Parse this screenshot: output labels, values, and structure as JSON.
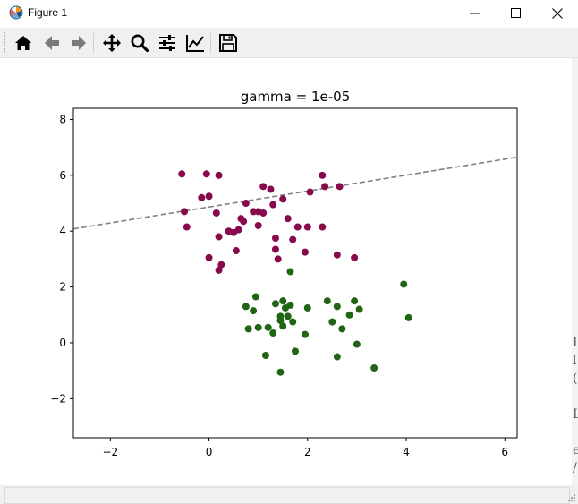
{
  "window": {
    "title": "Figure 1",
    "app_icon": "matplotlib-icon",
    "controls": [
      "minimize-icon",
      "maximize-icon",
      "close-icon"
    ]
  },
  "toolbar": {
    "buttons": [
      {
        "name": "home",
        "icon": "home-icon"
      },
      {
        "name": "back",
        "icon": "arrow-left-icon"
      },
      {
        "name": "forward",
        "icon": "arrow-right-icon"
      },
      {
        "name": "pan",
        "icon": "move-icon"
      },
      {
        "name": "zoom",
        "icon": "search-icon"
      },
      {
        "name": "configure-subplots",
        "icon": "sliders-icon"
      },
      {
        "name": "edit-axes",
        "icon": "chart-line-icon"
      },
      {
        "name": "save",
        "icon": "floppy-disk-icon"
      }
    ]
  },
  "colors": {
    "class_a": "#870a4c",
    "class_b": "#1f6514",
    "boundary": "#808080"
  },
  "chart_data": {
    "type": "scatter",
    "title": "gamma = 1e-05",
    "xlabel": "",
    "ylabel": "",
    "xlim": [
      -2.75,
      6.25
    ],
    "ylim": [
      -3.4,
      8.4
    ],
    "xticks": [
      -2,
      0,
      2,
      4,
      6
    ],
    "xtick_labels": [
      "−2",
      "0",
      "2",
      "4",
      "6"
    ],
    "yticks": [
      -2,
      0,
      2,
      4,
      6,
      8
    ],
    "ytick_labels": [
      "−2",
      "0",
      "2",
      "4",
      "6",
      "8"
    ],
    "grid": false,
    "legend": "none",
    "series": [
      {
        "color": "#870a4c",
        "points": [
          [
            -0.55,
            6.05
          ],
          [
            -0.05,
            6.05
          ],
          [
            0.2,
            6.0
          ],
          [
            -0.15,
            5.2
          ],
          [
            0.0,
            5.25
          ],
          [
            -0.5,
            4.7
          ],
          [
            0.15,
            4.65
          ],
          [
            -0.45,
            4.15
          ],
          [
            0.2,
            3.8
          ],
          [
            0.0,
            3.05
          ],
          [
            0.25,
            2.8
          ],
          [
            0.2,
            2.6
          ],
          [
            0.4,
            4.0
          ],
          [
            0.5,
            3.95
          ],
          [
            0.55,
            3.3
          ],
          [
            0.6,
            4.05
          ],
          [
            0.65,
            4.45
          ],
          [
            0.7,
            4.35
          ],
          [
            0.75,
            5.0
          ],
          [
            0.9,
            4.7
          ],
          [
            1.0,
            4.7
          ],
          [
            1.0,
            4.2
          ],
          [
            1.1,
            4.65
          ],
          [
            1.1,
            5.6
          ],
          [
            1.25,
            5.5
          ],
          [
            1.3,
            4.95
          ],
          [
            1.35,
            3.75
          ],
          [
            1.35,
            3.35
          ],
          [
            1.4,
            3.0
          ],
          [
            1.5,
            5.15
          ],
          [
            1.6,
            4.45
          ],
          [
            1.7,
            3.7
          ],
          [
            1.8,
            4.15
          ],
          [
            1.95,
            3.25
          ],
          [
            2.0,
            4.15
          ],
          [
            2.05,
            5.4
          ],
          [
            2.3,
            4.15
          ],
          [
            2.3,
            6.0
          ],
          [
            2.35,
            5.6
          ],
          [
            2.65,
            5.6
          ],
          [
            2.6,
            3.15
          ],
          [
            2.95,
            3.05
          ]
        ]
      },
      {
        "color": "#1f6514",
        "points": [
          [
            0.75,
            1.3
          ],
          [
            0.8,
            0.5
          ],
          [
            0.9,
            1.15
          ],
          [
            0.95,
            1.65
          ],
          [
            1.0,
            0.55
          ],
          [
            1.15,
            -0.45
          ],
          [
            1.2,
            0.55
          ],
          [
            1.3,
            0.35
          ],
          [
            1.35,
            1.4
          ],
          [
            1.45,
            0.8
          ],
          [
            1.45,
            0.95
          ],
          [
            1.5,
            1.5
          ],
          [
            1.5,
            0.6
          ],
          [
            1.55,
            1.25
          ],
          [
            1.6,
            0.95
          ],
          [
            1.65,
            1.35
          ],
          [
            1.7,
            0.75
          ],
          [
            1.65,
            2.55
          ],
          [
            1.75,
            -0.3
          ],
          [
            1.45,
            -1.05
          ],
          [
            1.95,
            0.3
          ],
          [
            2.0,
            1.25
          ],
          [
            2.4,
            1.5
          ],
          [
            2.5,
            0.75
          ],
          [
            2.6,
            1.3
          ],
          [
            2.6,
            -0.5
          ],
          [
            2.7,
            0.5
          ],
          [
            2.85,
            1.0
          ],
          [
            2.95,
            1.5
          ],
          [
            3.05,
            1.2
          ],
          [
            3.0,
            -0.05
          ],
          [
            3.35,
            -0.9
          ],
          [
            3.95,
            2.1
          ],
          [
            4.05,
            0.9
          ]
        ]
      }
    ],
    "decision_boundary": {
      "style": "dashed",
      "x": [
        -2.75,
        6.25
      ],
      "y": [
        4.08,
        6.65
      ]
    }
  }
}
